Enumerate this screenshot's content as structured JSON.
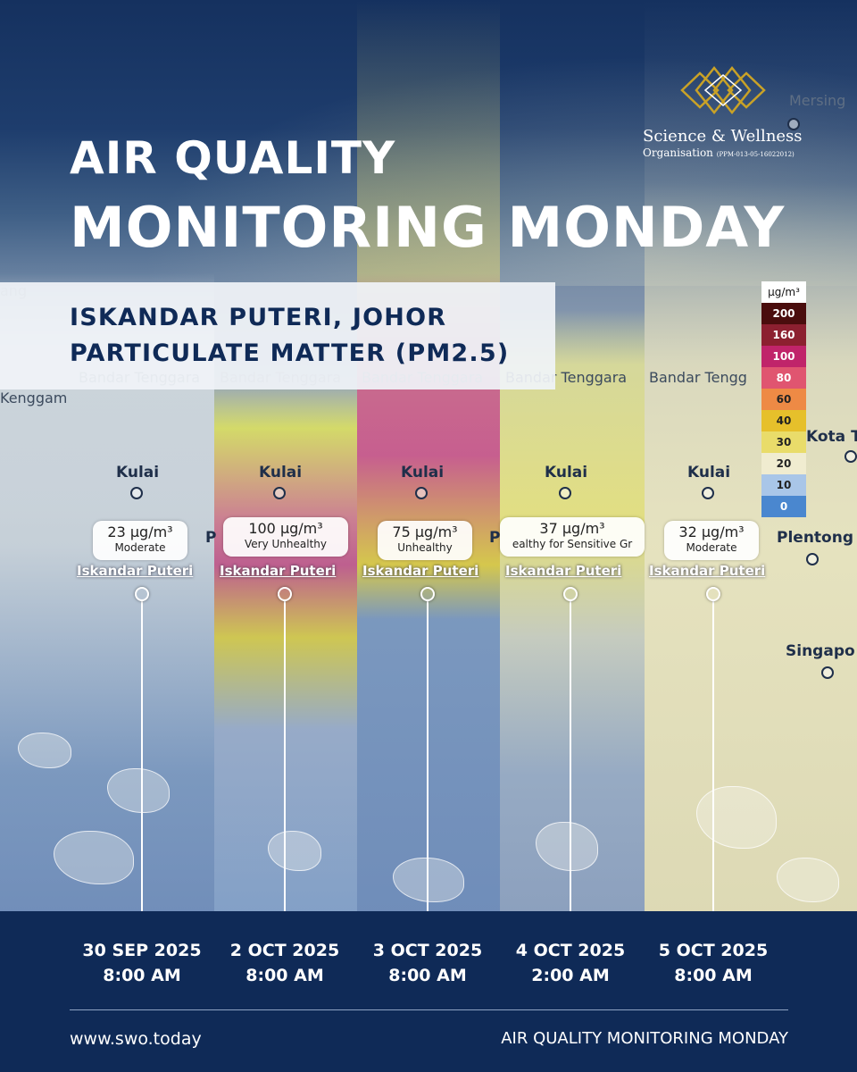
{
  "header": {
    "title_line1": "AIR QUALITY",
    "title_line2": "MONITORING MONDAY",
    "subtitle_line1": "ISKANDAR PUTERI, JOHOR",
    "subtitle_line2": "PARTICULATE MATTER (PM2.5)"
  },
  "logo": {
    "name": "Science & Wellness",
    "organisation": "Organisation",
    "registration": "(PPM-013-05-16022012)",
    "accent_color": "#c9a227"
  },
  "map": {
    "places": {
      "mersing": "Mersing",
      "bandar_tenggara": "Bandar Tenggara",
      "bandar_tengg": "Bandar Tengg",
      "kenggam": "Kenggam",
      "kenggam_partial": "Kenggam",
      "kulai": "Kulai",
      "kota_tinggi": "Kota T",
      "plentong": "Plentong",
      "singapore": "Singapo",
      "edge_letter": "P",
      "top_left_partial": "ang"
    },
    "station_name": "Iskandar Puteri"
  },
  "readings": [
    {
      "value": "23 µg/m³",
      "category": "Moderate",
      "date": "30 SEP 2025",
      "time": "8:00 AM"
    },
    {
      "value": "100 µg/m³",
      "category": "Very Unhealthy",
      "date": "2 OCT 2025",
      "time": "8:00 AM"
    },
    {
      "value": "75 µg/m³",
      "category": "Unhealthy",
      "date": "3 OCT 2025",
      "time": "8:00 AM"
    },
    {
      "value": "37 µg/m³",
      "category": "ealthy for Sensitive Gr",
      "date": "4 OCT 2025",
      "time": "2:00 AM"
    },
    {
      "value": "32 µg/m³",
      "category": "Moderate",
      "date": "5 OCT 2025",
      "time": "8:00 AM"
    }
  ],
  "legend": {
    "unit": "µg/m³",
    "steps": [
      {
        "label": "200",
        "color": "#4a0d0d",
        "text_color": "#ffffff"
      },
      {
        "label": "160",
        "color": "#8c2030",
        "text_color": "#ffffff"
      },
      {
        "label": "100",
        "color": "#c0246a",
        "text_color": "#ffffff"
      },
      {
        "label": "80",
        "color": "#e05570",
        "text_color": "#ffffff"
      },
      {
        "label": "60",
        "color": "#ee8a45",
        "text_color": "#222222"
      },
      {
        "label": "40",
        "color": "#e6c02b",
        "text_color": "#222222"
      },
      {
        "label": "30",
        "color": "#e9dc6a",
        "text_color": "#222222"
      },
      {
        "label": "20",
        "color": "#f0ecd0",
        "text_color": "#222222"
      },
      {
        "label": "10",
        "color": "#a9c6e8",
        "text_color": "#222222"
      },
      {
        "label": "0",
        "color": "#4a87cf",
        "text_color": "#ffffff"
      }
    ]
  },
  "footer": {
    "url": "www.swo.today",
    "tagline": "AIR QUALITY MONITORING MONDAY"
  }
}
